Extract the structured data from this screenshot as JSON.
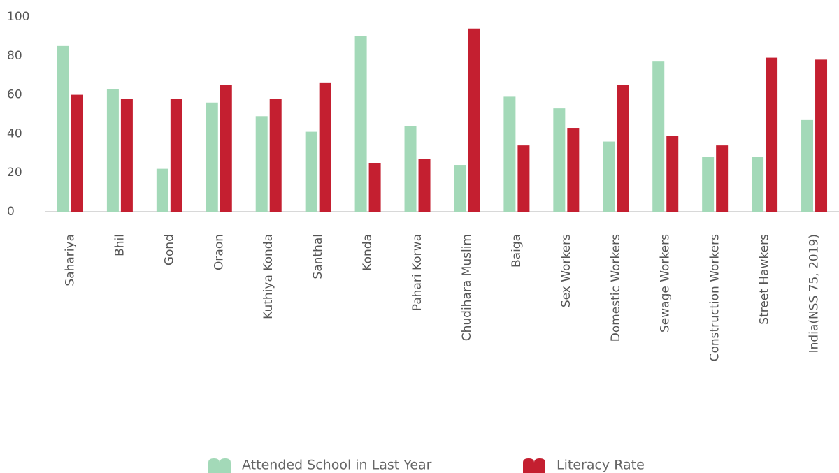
{
  "chart_data": {
    "type": "bar",
    "categories": [
      "Sahariya",
      "Bhil",
      "Gond",
      "Oraon",
      "Kuthiya Konda",
      "Santhal",
      "Konda",
      "Pahari Korwa",
      "Chudihara Muslim",
      "Baiga",
      "Sex Workers",
      "Domestic Workers",
      "Sewage Workers",
      "Construction Workers",
      "Street Hawkers",
      "India(NSS 75, 2019)"
    ],
    "series": [
      {
        "name": "Attended School in Last Year",
        "color": "#a3d9b8",
        "values": [
          85,
          63,
          22,
          56,
          49,
          41,
          90,
          44,
          24,
          59,
          53,
          36,
          77,
          28,
          28,
          47
        ]
      },
      {
        "name": "Literacy Rate",
        "color": "#c41f30",
        "values": [
          60,
          58,
          58,
          65,
          58,
          66,
          25,
          27,
          94,
          34,
          43,
          65,
          39,
          34,
          79,
          78
        ]
      }
    ],
    "ylim": [
      0,
      100
    ],
    "yticks": [
      0,
      20,
      40,
      60,
      80,
      100
    ],
    "grid": false,
    "legend": "bottom"
  }
}
